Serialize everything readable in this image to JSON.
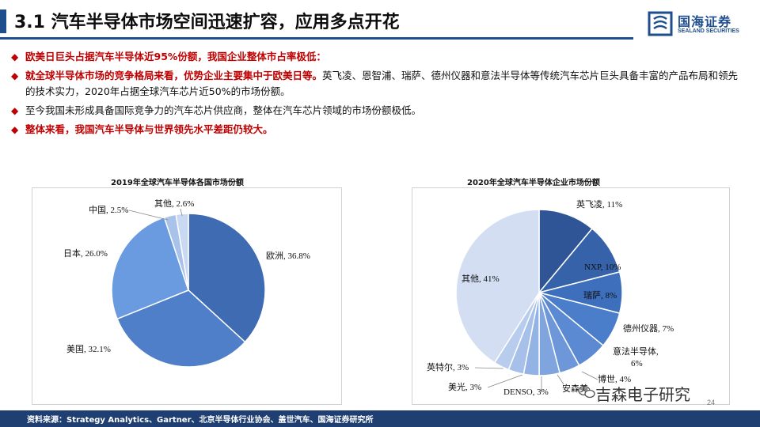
{
  "header": {
    "title": "3.1 汽车半导体市场空间迅速扩容，应用多点开花",
    "logo_text": "国海证券",
    "logo_sub": "SEALAND SECURITIES"
  },
  "bullets": [
    {
      "segments": [
        {
          "text": "欧美日巨头占据汽车半导体近95%份额，我国企业整体市占率极低：",
          "style": "red"
        }
      ]
    },
    {
      "segments": [
        {
          "text": "就全球半导体市场的竞争格局来看，优势企业主要集中于欧美日等。",
          "style": "red"
        },
        {
          "text": "英飞凌、恩智浦、瑞萨、德州仪器和意法半导体等传统汽车芯片巨头具备丰富的产品布局和领先 的技术实力，2020年占据全球汽车芯片近50%的市场份额。",
          "style": "plain"
        }
      ]
    },
    {
      "segments": [
        {
          "text": "至今我国未形成具备国际竞争力的汽车芯片供应商，整体在汽车芯片领域的市场份额极低。",
          "style": "plain"
        }
      ]
    },
    {
      "segments": [
        {
          "text": "整体来看，我国汽车半导体与世界领先水平差距仍较大。",
          "style": "red"
        }
      ]
    }
  ],
  "chart_data": [
    {
      "type": "pie",
      "title": "2019年全球汽车半导体各国市场份额",
      "start": "12 o'clock",
      "direction": "clockwise",
      "slices": [
        {
          "label": "欧洲, 36.8%",
          "value": 36.8,
          "color": "#3f6bb3"
        },
        {
          "label": "美国, 32.1%",
          "value": 32.1,
          "color": "#4f7fc8"
        },
        {
          "label": "日本, 26.0%",
          "value": 26.0,
          "color": "#6a9be0"
        },
        {
          "label": "中国, 2.5%",
          "value": 2.5,
          "color": "#a9c2ea"
        },
        {
          "label": "其他, 2.6%",
          "value": 2.6,
          "color": "#c9d9f2"
        }
      ]
    },
    {
      "type": "pie",
      "title": "2020年全球汽车半导体企业市场份额",
      "start": "12 o'clock",
      "direction": "clockwise",
      "slices": [
        {
          "label": "英飞凌, 11%",
          "value": 11,
          "color": "#2f5597"
        },
        {
          "label": "NXP, 10%",
          "value": 10,
          "color": "#3562a8"
        },
        {
          "label": "瑞萨, 8%",
          "value": 8,
          "color": "#3d6fbd"
        },
        {
          "label": "德州仪器, 7%",
          "value": 7,
          "color": "#4a7dca"
        },
        {
          "label": "意法半导体,",
          "label2": "6%",
          "value": 6,
          "color": "#5b8ad2"
        },
        {
          "label": "博世, 4%",
          "value": 4,
          "color": "#6d97d8"
        },
        {
          "label": "安森美",
          "value": 4,
          "color": "#7fa4de"
        },
        {
          "label": "DENSO, 3%",
          "value": 3,
          "color": "#93b3e4"
        },
        {
          "label": "美光, 3%",
          "value": 3,
          "color": "#a6c0e9"
        },
        {
          "label": "英特尔, 3%",
          "value": 3,
          "color": "#b8cdee"
        },
        {
          "label": "其他, 41%",
          "value": 41,
          "color": "#d3def3"
        }
      ]
    }
  ],
  "footer": {
    "source": "资料来源：Strategy Analytics、Gartner、北京半导体行业协会、盖世汽车、国海证券研究所"
  },
  "watermark": "吉森电子研究",
  "page_number": "24"
}
